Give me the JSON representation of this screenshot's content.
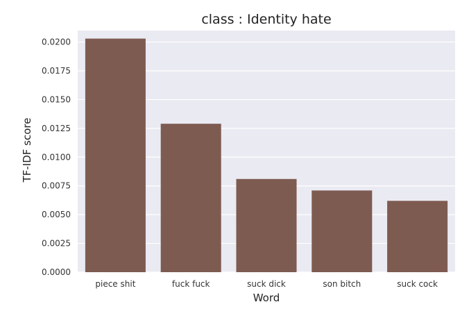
{
  "chart_data": {
    "type": "bar",
    "title": "class : Identity hate",
    "xlabel": "Word",
    "ylabel": "TF-IDF score",
    "categories": [
      "piece shit",
      "fuck fuck",
      "suck dick",
      "son bitch",
      "suck cock"
    ],
    "values": [
      0.0203,
      0.0129,
      0.0081,
      0.0071,
      0.0062
    ],
    "ylim": [
      0,
      0.021
    ],
    "yticks": [
      "0.0000",
      "0.0025",
      "0.0050",
      "0.0075",
      "0.0100",
      "0.0125",
      "0.0150",
      "0.0175",
      "0.0200"
    ],
    "grid": true,
    "bar_color": "#7e5b51",
    "background_color": "#eaeaf2"
  }
}
